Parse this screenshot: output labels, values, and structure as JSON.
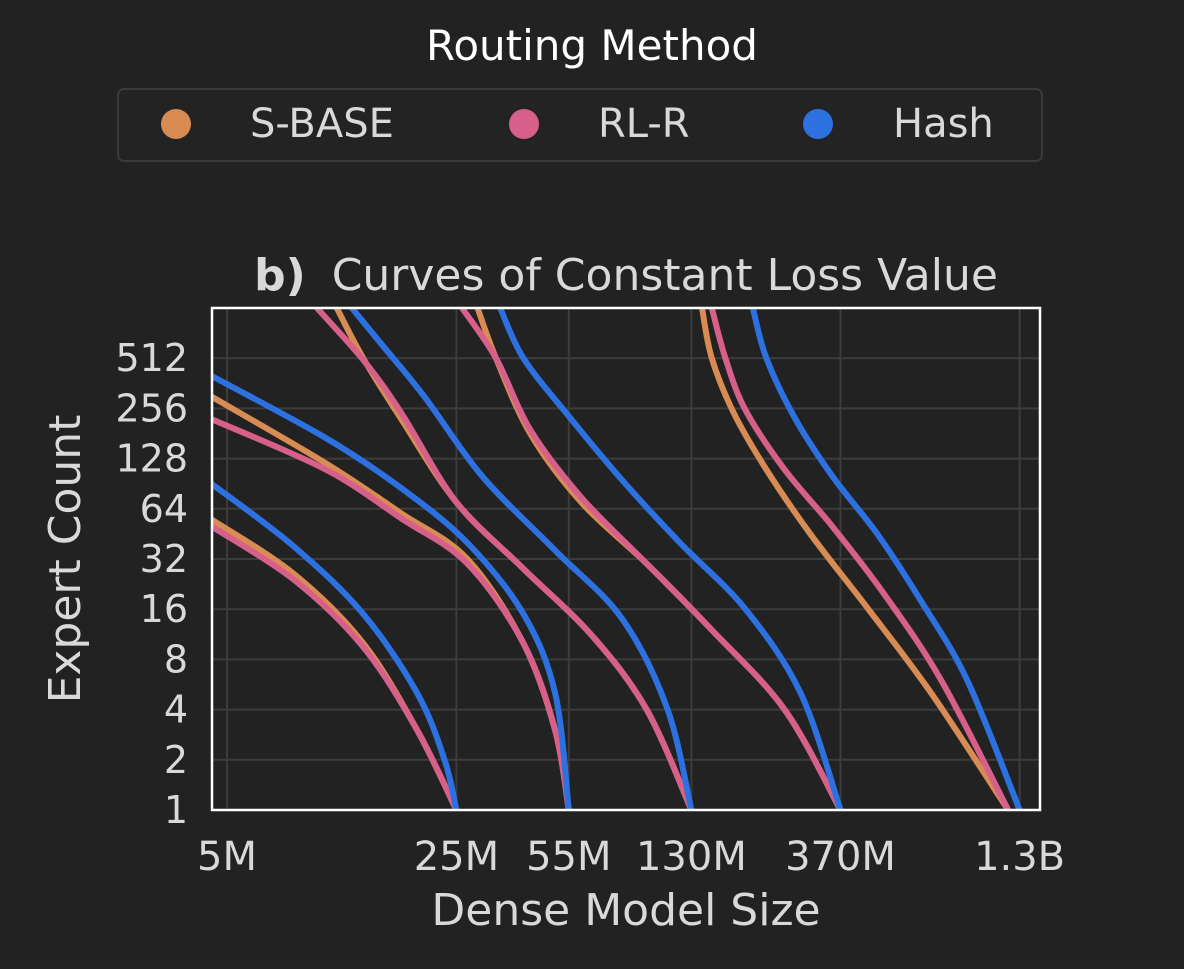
{
  "legend": {
    "title": "Routing Method",
    "placement": "top-center",
    "entries": [
      {
        "label": "S-BASE",
        "color": "#D88B52"
      },
      {
        "label": "RL-R",
        "color": "#D6608A"
      },
      {
        "label": "Hash",
        "color": "#2D71E0"
      }
    ]
  },
  "chart_data": {
    "type": "line",
    "title_prefix": "b)",
    "title": "Curves of Constant Loss Value",
    "xlabel": "Dense Model Size",
    "ylabel": "Expert Count",
    "x_scale": "log",
    "y_scale": "log2",
    "xlim": [
      4500000,
      1500000000
    ],
    "ylim": [
      1,
      1024
    ],
    "grid": true,
    "x_ticks": [
      {
        "value": 5000000,
        "label": "5M"
      },
      {
        "value": 25000000,
        "label": "25M"
      },
      {
        "value": 55000000,
        "label": "55M"
      },
      {
        "value": 130000000,
        "label": "130M"
      },
      {
        "value": 370000000,
        "label": "370M"
      },
      {
        "value": 1300000000,
        "label": "1.3B"
      }
    ],
    "y_ticks": [
      {
        "value": 1,
        "label": "1"
      },
      {
        "value": 2,
        "label": "2"
      },
      {
        "value": 4,
        "label": "4"
      },
      {
        "value": 8,
        "label": "8"
      },
      {
        "value": 16,
        "label": "16"
      },
      {
        "value": 32,
        "label": "32"
      },
      {
        "value": 64,
        "label": "64"
      },
      {
        "value": 128,
        "label": "128"
      },
      {
        "value": 256,
        "label": "256"
      },
      {
        "value": 512,
        "label": "512"
      }
    ],
    "series": [
      {
        "routing": "S-BASE",
        "color": "#D88B52",
        "points": [
          [
            4500000,
            55
          ],
          [
            8000000,
            26
          ],
          [
            13000000,
            10
          ],
          [
            19000000,
            3
          ],
          [
            25000000,
            1
          ]
        ]
      },
      {
        "routing": "RL-R",
        "color": "#D6608A",
        "points": [
          [
            4500000,
            50
          ],
          [
            8000000,
            24
          ],
          [
            13000000,
            9.5
          ],
          [
            19000000,
            3
          ],
          [
            25000000,
            1
          ]
        ]
      },
      {
        "routing": "Hash",
        "color": "#2D71E0",
        "points": [
          [
            4500000,
            90
          ],
          [
            8000000,
            38
          ],
          [
            13000000,
            15
          ],
          [
            19000000,
            5
          ],
          [
            23000000,
            2
          ],
          [
            25000000,
            1
          ]
        ]
      },
      {
        "routing": "S-BASE",
        "color": "#D88B52",
        "points": [
          [
            4500000,
            300
          ],
          [
            10000000,
            120
          ],
          [
            17000000,
            60
          ],
          [
            27000000,
            32
          ],
          [
            40000000,
            10
          ],
          [
            50000000,
            3
          ],
          [
            55000000,
            1
          ]
        ]
      },
      {
        "routing": "RL-R",
        "color": "#D6608A",
        "points": [
          [
            4500000,
            220
          ],
          [
            10000000,
            110
          ],
          [
            17000000,
            56
          ],
          [
            27000000,
            30
          ],
          [
            40000000,
            10
          ],
          [
            50000000,
            3
          ],
          [
            55000000,
            1
          ]
        ]
      },
      {
        "routing": "Hash",
        "color": "#2D71E0",
        "points": [
          [
            4500000,
            400
          ],
          [
            10000000,
            170
          ],
          [
            17000000,
            85
          ],
          [
            27000000,
            40
          ],
          [
            40000000,
            15
          ],
          [
            50000000,
            5
          ],
          [
            55000000,
            1
          ]
        ]
      },
      {
        "routing": "S-BASE",
        "color": "#D88B52",
        "points": [
          [
            10800000,
            1024
          ],
          [
            13000000,
            512
          ],
          [
            17000000,
            220
          ],
          [
            25000000,
            70
          ],
          [
            40000000,
            28
          ],
          [
            65000000,
            11
          ],
          [
            95000000,
            4
          ],
          [
            130000000,
            1
          ]
        ]
      },
      {
        "routing": "RL-R",
        "color": "#D6608A",
        "points": [
          [
            9400000,
            1024
          ],
          [
            13000000,
            500
          ],
          [
            17000000,
            240
          ],
          [
            25000000,
            70
          ],
          [
            40000000,
            28
          ],
          [
            65000000,
            11
          ],
          [
            95000000,
            4
          ],
          [
            130000000,
            1
          ]
        ]
      },
      {
        "routing": "Hash",
        "color": "#2D71E0",
        "points": [
          [
            12000000,
            1024
          ],
          [
            15000000,
            600
          ],
          [
            20000000,
            300
          ],
          [
            30000000,
            100
          ],
          [
            50000000,
            36
          ],
          [
            80000000,
            14
          ],
          [
            110000000,
            4
          ],
          [
            130000000,
            1
          ]
        ]
      },
      {
        "routing": "S-BASE",
        "color": "#D88B52",
        "points": [
          [
            29000000,
            1024
          ],
          [
            33000000,
            512
          ],
          [
            42000000,
            180
          ],
          [
            60000000,
            70
          ],
          [
            95000000,
            30
          ],
          [
            150000000,
            12
          ],
          [
            250000000,
            4
          ],
          [
            370000000,
            1
          ]
        ]
      },
      {
        "routing": "RL-R",
        "color": "#D6608A",
        "points": [
          [
            26000000,
            1024
          ],
          [
            33000000,
            512
          ],
          [
            42000000,
            190
          ],
          [
            60000000,
            75
          ],
          [
            95000000,
            30
          ],
          [
            150000000,
            12
          ],
          [
            250000000,
            4
          ],
          [
            370000000,
            1
          ]
        ]
      },
      {
        "routing": "Hash",
        "color": "#2D71E0",
        "points": [
          [
            34000000,
            1024
          ],
          [
            40000000,
            512
          ],
          [
            55000000,
            230
          ],
          [
            80000000,
            95
          ],
          [
            120000000,
            40
          ],
          [
            190000000,
            16
          ],
          [
            280000000,
            5
          ],
          [
            370000000,
            1
          ]
        ]
      },
      {
        "routing": "S-BASE",
        "color": "#D88B52",
        "points": [
          [
            140000000,
            1024
          ],
          [
            150000000,
            512
          ],
          [
            175000000,
            240
          ],
          [
            220000000,
            110
          ],
          [
            300000000,
            45
          ],
          [
            450000000,
            16
          ],
          [
            700000000,
            5
          ],
          [
            1200000000,
            1
          ]
        ]
      },
      {
        "routing": "RL-R",
        "color": "#D6608A",
        "points": [
          [
            150000000,
            1024
          ],
          [
            165000000,
            512
          ],
          [
            190000000,
            250
          ],
          [
            250000000,
            110
          ],
          [
            350000000,
            50
          ],
          [
            500000000,
            20
          ],
          [
            750000000,
            6
          ],
          [
            1200000000,
            1
          ]
        ]
      },
      {
        "routing": "Hash",
        "color": "#2D71E0",
        "points": [
          [
            200000000,
            1024
          ],
          [
            220000000,
            512
          ],
          [
            270000000,
            220
          ],
          [
            350000000,
            100
          ],
          [
            480000000,
            45
          ],
          [
            650000000,
            18
          ],
          [
            900000000,
            6
          ],
          [
            1300000000,
            1
          ]
        ]
      }
    ]
  }
}
